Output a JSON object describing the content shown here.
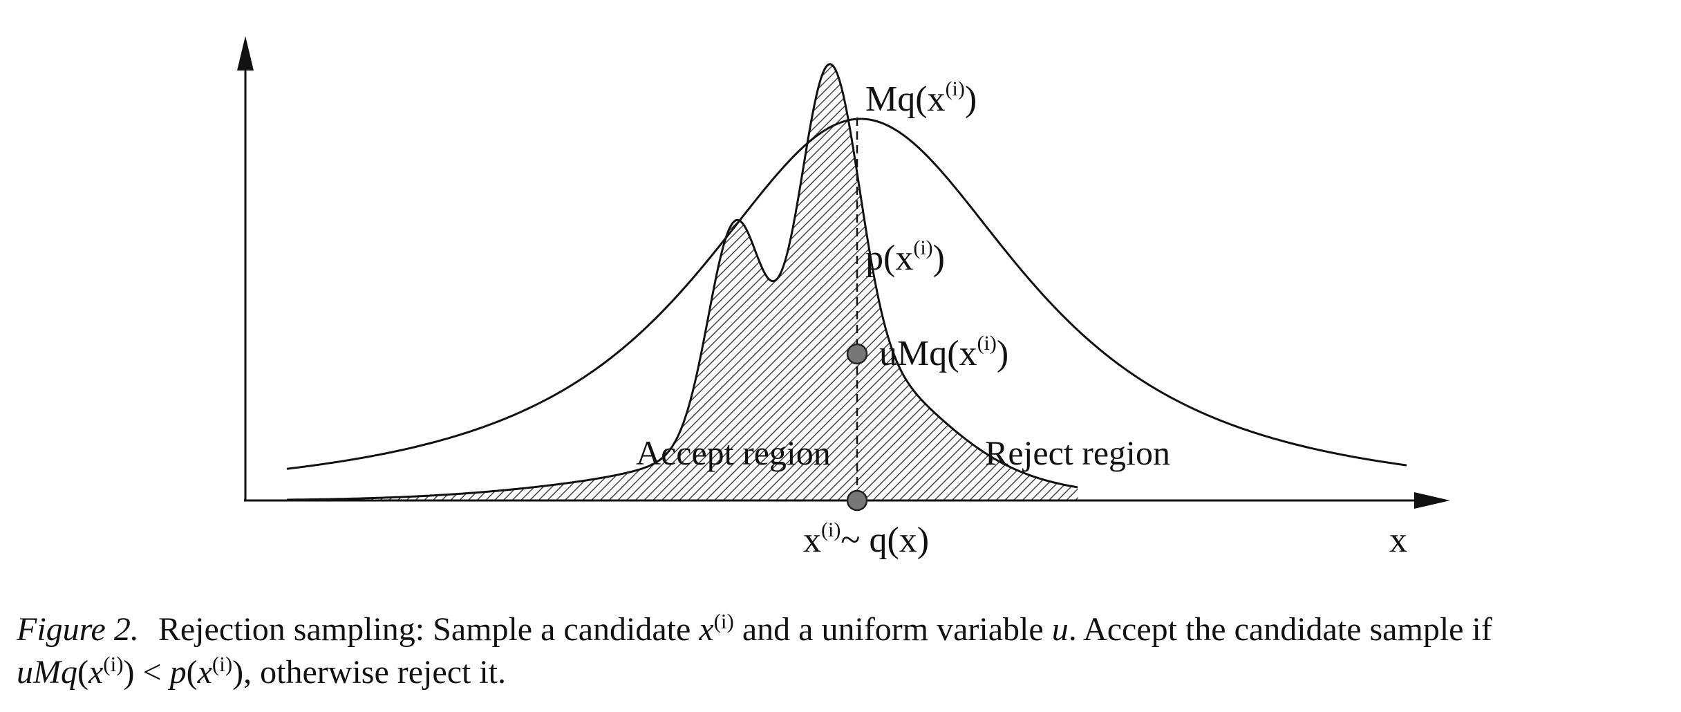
{
  "figure": {
    "labels": {
      "envelope": "Mq(x",
      "target": "p(x",
      "sample_point": "uMq(x",
      "accept_region": "Accept region",
      "reject_region": "Reject region",
      "x_sample": "x",
      "x_sample_rest": "~ q(x)",
      "x_axis": "x",
      "superscript": "(i)",
      "close_paren": ")"
    },
    "colors": {
      "line": "#111111",
      "marker": "#777777",
      "hatch": "#444444"
    }
  },
  "caption": {
    "figure_label": "Figure 2.",
    "part1": "Rejection sampling: Sample a candidate ",
    "var_x": "x",
    "sup_i": "(i)",
    "part2": " and a uniform variable ",
    "var_u": "u",
    "part3": ". Accept the candidate sample if",
    "ineq_left": "uMq",
    "ineq_open": "(",
    "ineq_x": "x",
    "ineq_close": ")",
    "ineq_op": " < ",
    "ineq_p": "p",
    "part4": ", otherwise reject it."
  }
}
